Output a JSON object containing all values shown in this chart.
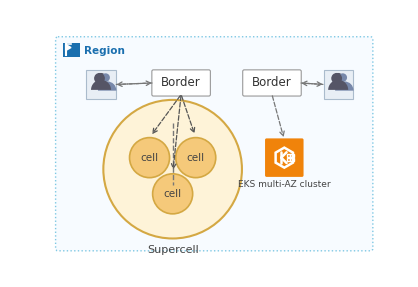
{
  "bg_color": "#ffffff",
  "region_border_color": "#7ec8e3",
  "region_bg_color": "#f7fbff",
  "region_label": "Region",
  "region_icon_bg": "#1a6faf",
  "border_box_color": "#999999",
  "border_box_bg": "#ffffff",
  "border_label": "Border",
  "supercell_outer_fill": "#fef3d8",
  "supercell_outer_edge": "#d4a843",
  "cell_fill": "#f5c97a",
  "cell_edge": "#d4a843",
  "cell_label": "cell",
  "supercell_label": "Supercell",
  "eks_label": "EKS multi-AZ cluster",
  "eks_color_top": "#f0830a",
  "eks_color_bot": "#d4650a",
  "arrow_color": "#555555",
  "dashed_color": "#777777",
  "user_fill": "#555566",
  "user_box": "#e8eef5",
  "user_box_edge": "#aabbcc"
}
